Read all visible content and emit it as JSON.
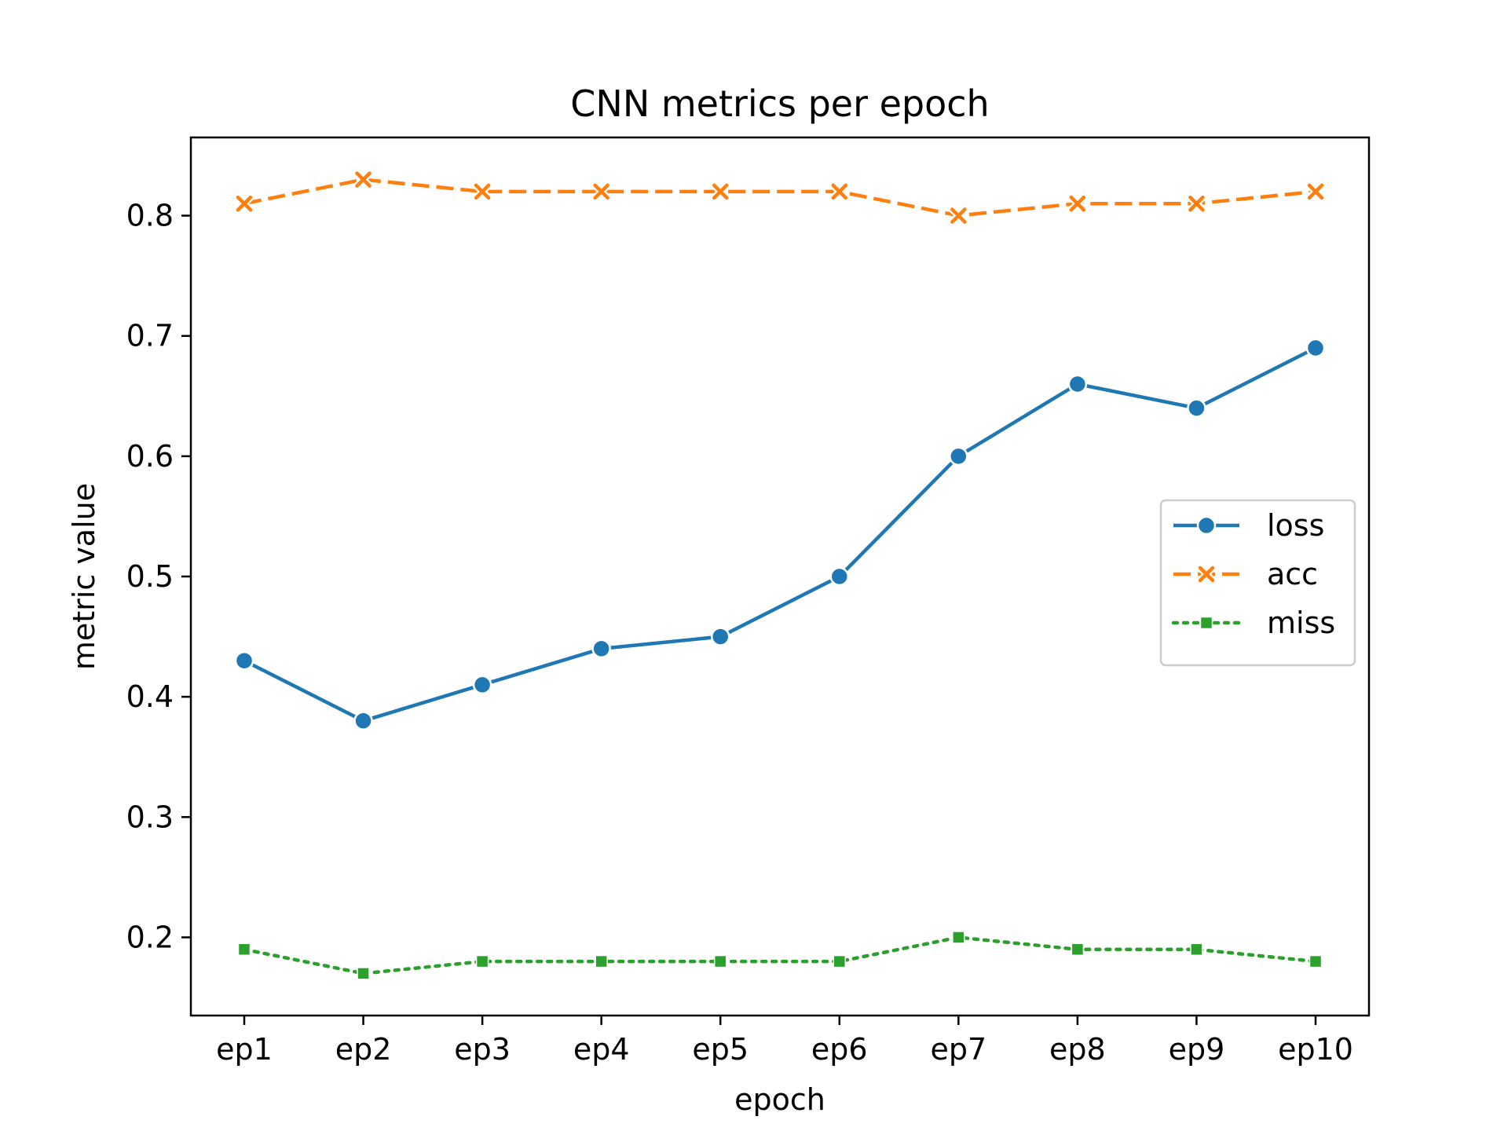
{
  "chart_data": {
    "type": "line",
    "title": "CNN metrics per epoch",
    "xlabel": "epoch",
    "ylabel": "metric value",
    "categories": [
      "ep1",
      "ep2",
      "ep3",
      "ep4",
      "ep5",
      "ep6",
      "ep7",
      "ep8",
      "ep9",
      "ep10"
    ],
    "ylim": [
      0.135,
      0.865
    ],
    "yticks": [
      0.2,
      0.3,
      0.4,
      0.5,
      0.6,
      0.7,
      0.8
    ],
    "ytick_labels": [
      "0.2",
      "0.3",
      "0.4",
      "0.5",
      "0.6",
      "0.7",
      "0.8"
    ],
    "grid": false,
    "legend_position": "center-right",
    "series": [
      {
        "name": "loss",
        "values": [
          0.43,
          0.38,
          0.41,
          0.44,
          0.45,
          0.5,
          0.6,
          0.66,
          0.64,
          0.69
        ],
        "color": "#1f77b4",
        "dash": "solid",
        "marker": "circle"
      },
      {
        "name": "acc",
        "values": [
          0.81,
          0.83,
          0.82,
          0.82,
          0.82,
          0.82,
          0.8,
          0.81,
          0.81,
          0.82
        ],
        "color": "#ff7f0e",
        "dash": "dashed",
        "marker": "x"
      },
      {
        "name": "miss",
        "values": [
          0.19,
          0.17,
          0.18,
          0.18,
          0.18,
          0.18,
          0.2,
          0.19,
          0.19,
          0.18
        ],
        "color": "#2ca02c",
        "dash": "dotted",
        "marker": "square"
      }
    ]
  }
}
